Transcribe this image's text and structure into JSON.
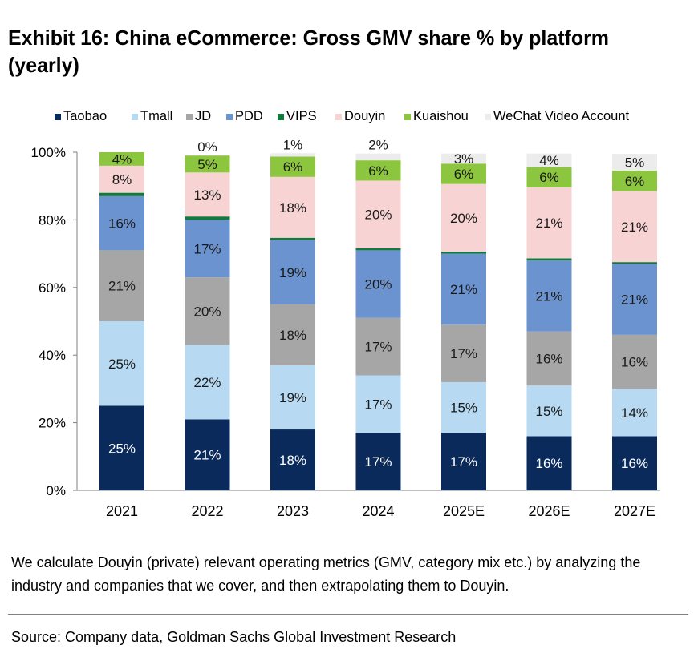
{
  "title": "Exhibit 16: China eCommerce: Gross GMV share % by platform (yearly)",
  "note": "We calculate Douyin (private) relevant operating metrics (GMV, category mix etc.) by analyzing the industry and companies that we cover, and then extrapolating them to Douyin.",
  "source": "Source: Company data, Goldman Sachs Global Investment Research",
  "colors": {
    "Taobao": "#0a2a5c",
    "Tmall": "#b7daf2",
    "JD": "#a6a6a6",
    "PDD": "#6b93cf",
    "VIPS": "#127a3c",
    "Douyin": "#f7d3d3",
    "Kuaishou": "#8cc63f",
    "WeChat Video Account": "#ececec"
  },
  "chart_data": {
    "type": "bar",
    "stacked": true,
    "categories": [
      "2021",
      "2022",
      "2023",
      "2024",
      "2025E",
      "2026E",
      "2027E"
    ],
    "ylim": [
      0,
      100
    ],
    "yticks": [
      "0%",
      "20%",
      "40%",
      "60%",
      "80%",
      "100%"
    ],
    "legend_position": "top",
    "series": [
      {
        "name": "Taobao",
        "values": [
          25,
          21,
          18,
          17,
          17,
          16,
          16
        ],
        "labels": [
          "25%",
          "21%",
          "18%",
          "17%",
          "17%",
          "16%",
          "16%"
        ]
      },
      {
        "name": "Tmall",
        "values": [
          25,
          22,
          19,
          17,
          15,
          15,
          14
        ],
        "labels": [
          "25%",
          "22%",
          "19%",
          "17%",
          "15%",
          "15%",
          "14%"
        ]
      },
      {
        "name": "JD",
        "values": [
          21,
          20,
          18,
          17,
          17,
          16,
          16
        ],
        "labels": [
          "21%",
          "20%",
          "18%",
          "17%",
          "17%",
          "16%",
          "16%"
        ]
      },
      {
        "name": "PDD",
        "values": [
          16,
          17,
          19,
          20,
          21,
          21,
          21
        ],
        "labels": [
          "16%",
          "17%",
          "19%",
          "20%",
          "21%",
          "21%",
          "21%"
        ]
      },
      {
        "name": "VIPS",
        "values": [
          1,
          1,
          0.7,
          0.6,
          0.6,
          0.6,
          0.5
        ],
        "labels": [
          "",
          "",
          "",
          "",
          "",
          "",
          ""
        ]
      },
      {
        "name": "Douyin",
        "values": [
          8,
          13,
          18,
          20,
          20,
          21,
          21
        ],
        "labels": [
          "8%",
          "13%",
          "18%",
          "20%",
          "20%",
          "21%",
          "21%"
        ]
      },
      {
        "name": "Kuaishou",
        "values": [
          4,
          5,
          6,
          6,
          6,
          6,
          6
        ],
        "labels": [
          "4%",
          "5%",
          "6%",
          "6%",
          "6%",
          "6%",
          "6%"
        ]
      },
      {
        "name": "WeChat Video Account",
        "values": [
          0,
          0,
          1,
          2,
          3,
          4,
          5
        ],
        "labels": [
          "",
          "0%",
          "1%",
          "2%",
          "3%",
          "4%",
          "5%"
        ]
      }
    ]
  }
}
